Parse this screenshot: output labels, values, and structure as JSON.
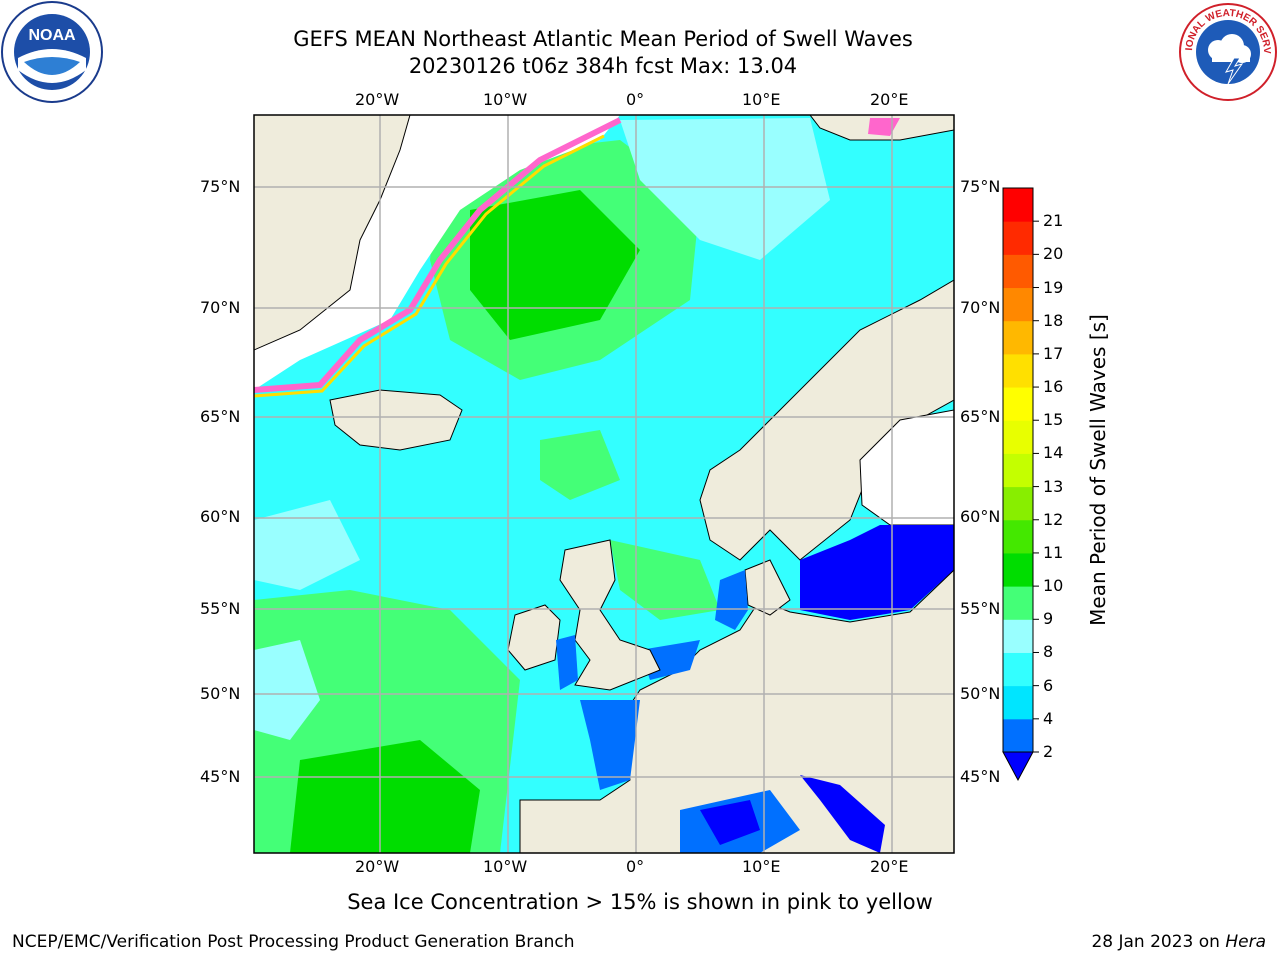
{
  "title": {
    "line1": "GEFS MEAN Northeast Atlantic Mean Period of Swell Waves",
    "line2": "20230126 t06z 384h fcst   Max: 13.04"
  },
  "map": {
    "lon_labels": [
      "20°W",
      "10°W",
      "0°",
      "10°E",
      "20°E"
    ],
    "lat_labels": [
      "75°N",
      "70°N",
      "65°N",
      "60°N",
      "55°N",
      "50°N",
      "45°N"
    ],
    "colors": {
      "land": "#efecdc",
      "ice_free_white": "#ffffff",
      "gridline": "#b0b0b0",
      "coast": "#000000"
    }
  },
  "colorbar": {
    "title": "Mean Period of Swell Waves [s]",
    "tick_labels": [
      "2",
      "4",
      "6",
      "8",
      "9",
      "10",
      "11",
      "12",
      "13",
      "14",
      "15",
      "16",
      "17",
      "18",
      "19",
      "20",
      "21"
    ],
    "colors": [
      "#0070ff",
      "#00e5ff",
      "#33ffff",
      "#99ffff",
      "#44ff77",
      "#00dd00",
      "#44e800",
      "#88ee00",
      "#c4ff00",
      "#e8ff00",
      "#ffff00",
      "#ffe000",
      "#ffb800",
      "#ff8800",
      "#ff5a00",
      "#ff2a00",
      "#ff0000"
    ],
    "extend_color": "#0000ff"
  },
  "caption": "Sea Ice Concentration > 15% is shown in pink to yellow",
  "footer": {
    "left": "NCEP/EMC/Verification Post Processing Product Generation Branch",
    "date": "28 Jan 2023 on ",
    "host": "Hera"
  },
  "logos": {
    "noaa_text": "NOAA",
    "nws_text": "NATIONAL WEATHER SERVICE"
  }
}
